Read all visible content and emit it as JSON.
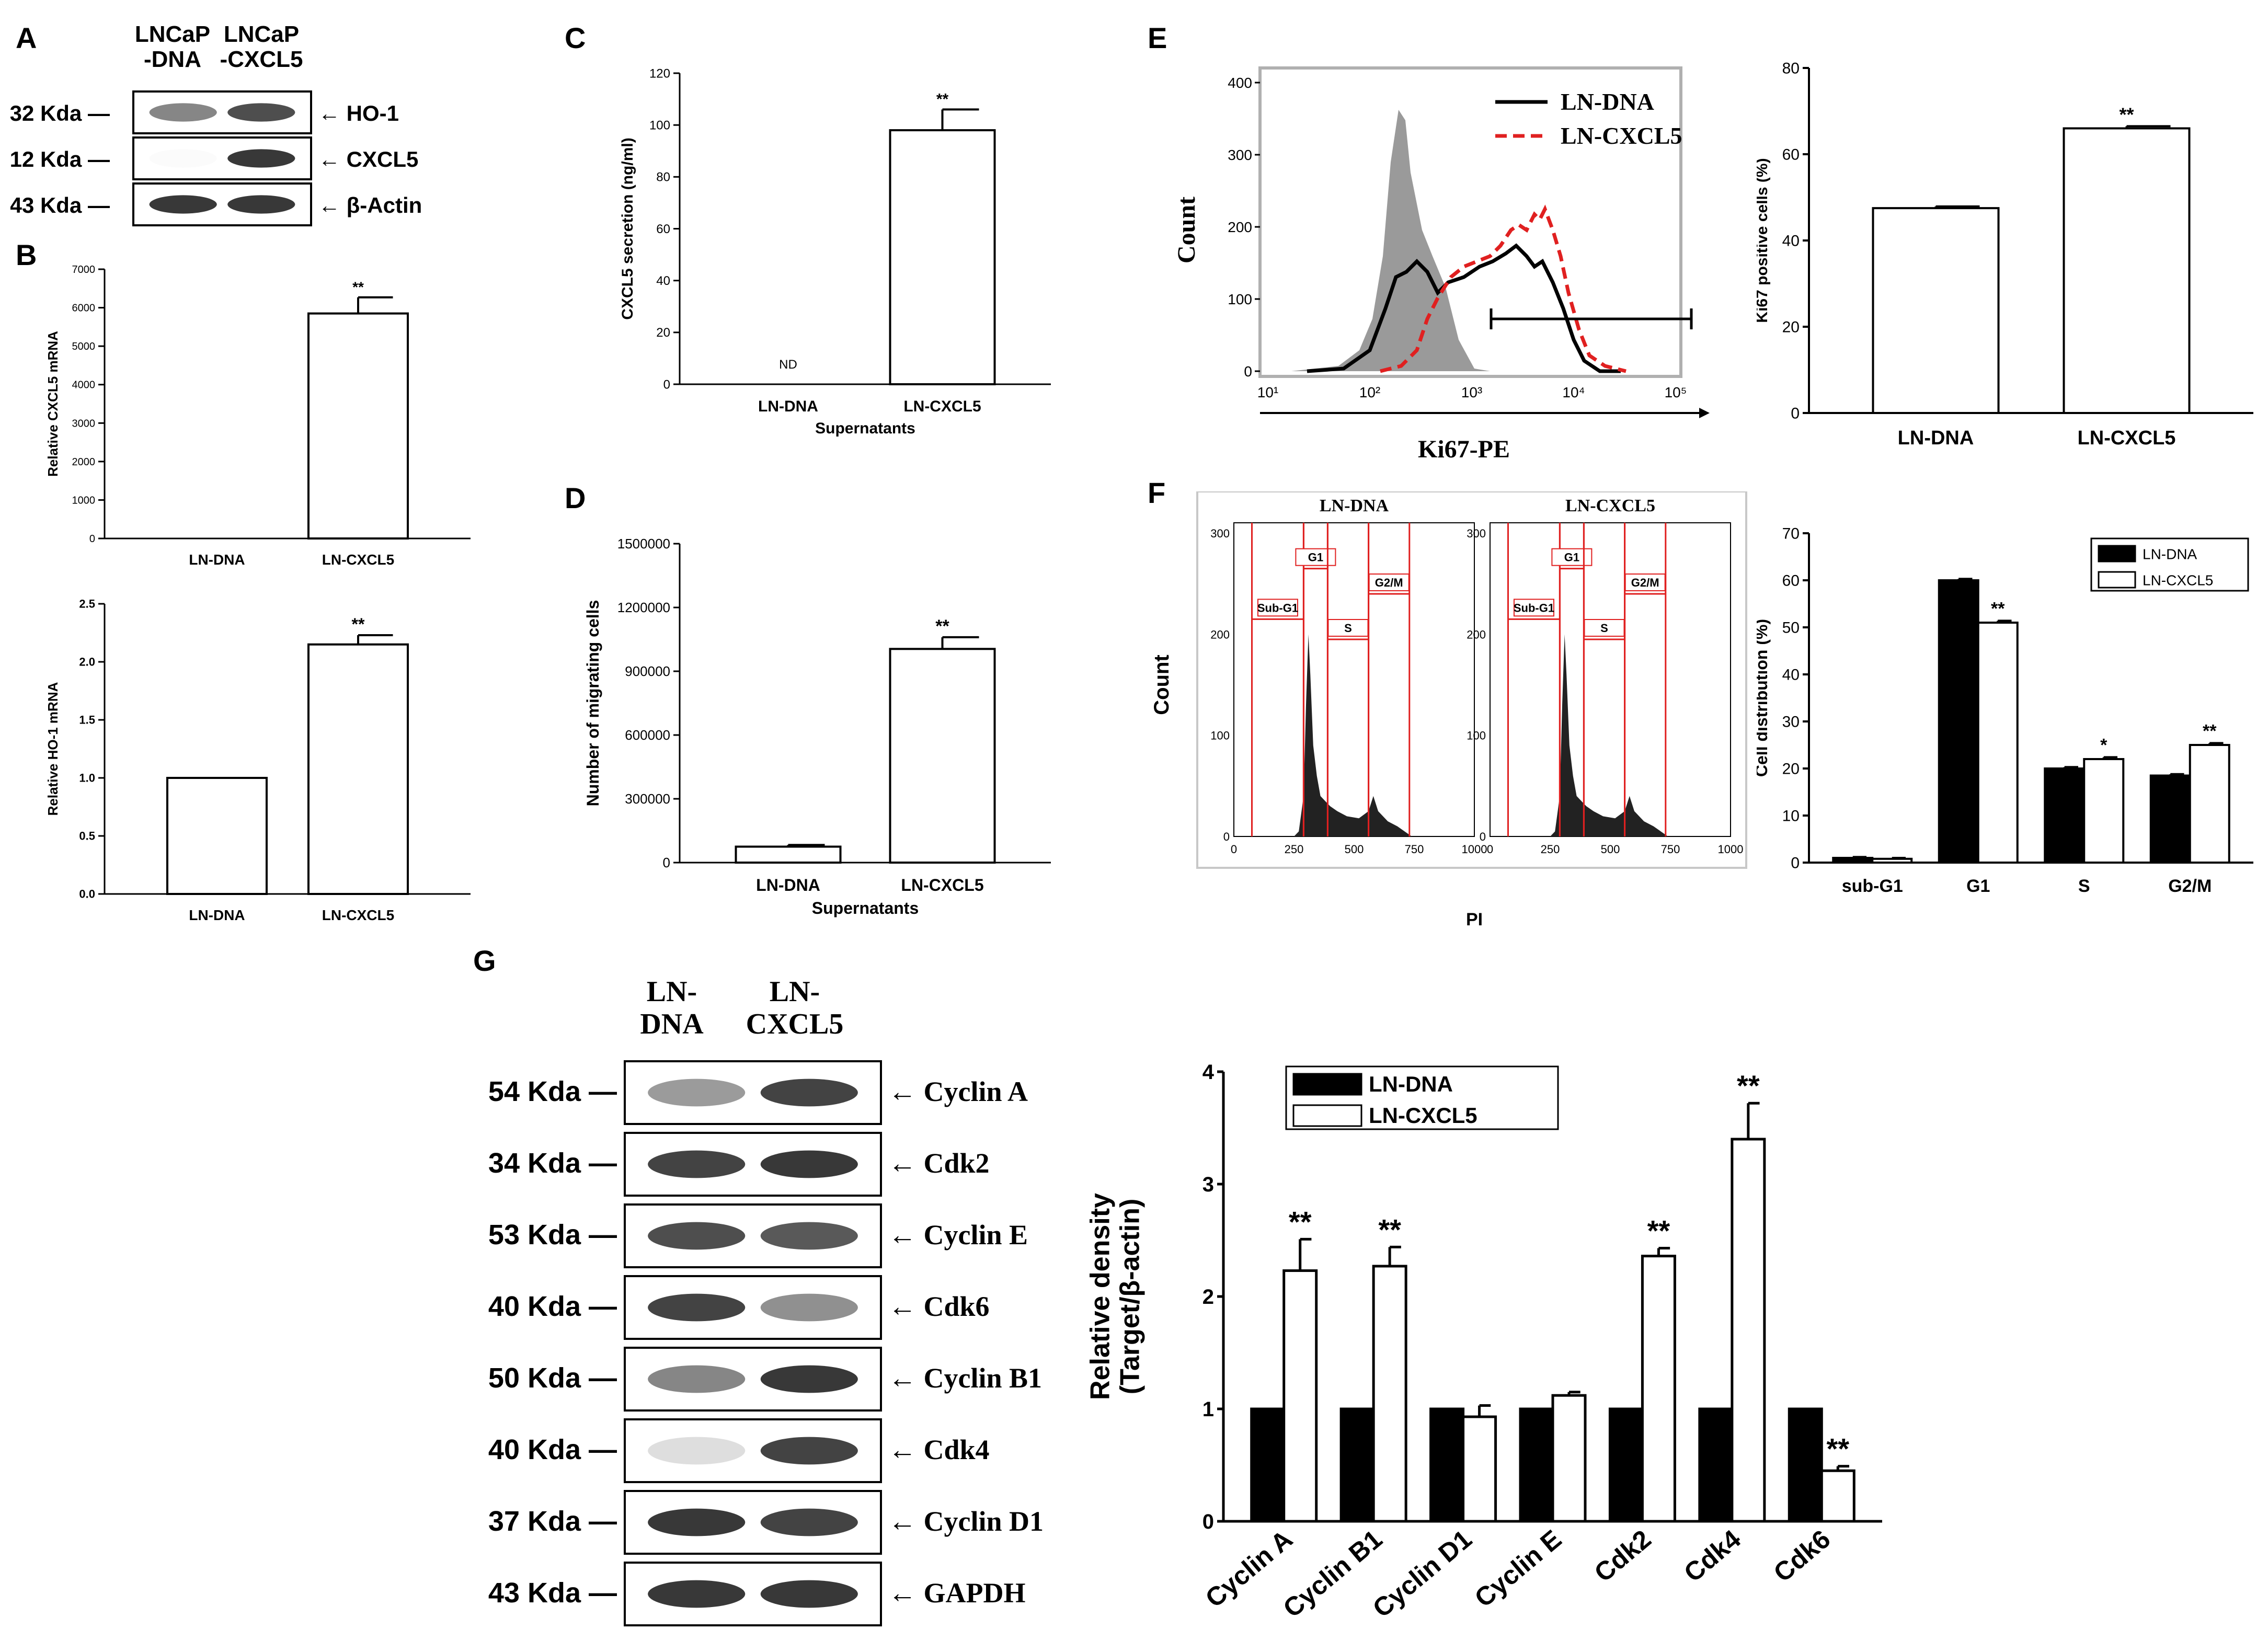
{
  "panel_letters": {
    "A": "A",
    "B": "B",
    "C": "C",
    "D": "D",
    "E": "E",
    "F": "F",
    "G": "G"
  },
  "blotA": {
    "lane_headers": [
      "LNCaP\n-DNA",
      "LNCaP\n-CXCL5"
    ],
    "rows": [
      {
        "mw": "32 Kda",
        "protein": "HO-1"
      },
      {
        "mw": "12 Kda",
        "protein": "CXCL5"
      },
      {
        "mw": "43 Kda",
        "protein": "β-Actin"
      }
    ]
  },
  "blotG": {
    "lane_headers": [
      "LN-\nDNA",
      "LN-\nCXCL5"
    ],
    "rows": [
      {
        "mw": "54 Kda",
        "protein": "Cyclin A"
      },
      {
        "mw": "34 Kda",
        "protein": "Cdk2"
      },
      {
        "mw": "53 Kda",
        "protein": "Cyclin E"
      },
      {
        "mw": "40 Kda",
        "protein": "Cdk6"
      },
      {
        "mw": "50 Kda",
        "protein": "Cyclin B1"
      },
      {
        "mw": "40 Kda",
        "protein": "Cdk4"
      },
      {
        "mw": "37 Kda",
        "protein": "Cyclin D1"
      },
      {
        "mw": "43 Kda",
        "protein": "GAPDH"
      }
    ]
  },
  "flowE": {
    "ylabel": "Count",
    "xlabel": "Ki67-PE",
    "yticks": [
      "0",
      "100",
      "200",
      "300",
      "400"
    ],
    "xticks": [
      "10¹",
      "10²",
      "10³",
      "10⁴",
      "10⁵"
    ],
    "legend": [
      "LN-DNA",
      "LN-CXCL5"
    ]
  },
  "flowF": {
    "ylabel": "Count",
    "xlabel": "PI",
    "panels": [
      "LN-DNA",
      "LN-CXCL5"
    ],
    "yticks": [
      "0",
      "100",
      "200",
      "300"
    ],
    "xticks": [
      "0",
      "250",
      "500",
      "750",
      "1000"
    ],
    "gates": [
      "Sub-G1",
      "G1",
      "S",
      "G2/M"
    ]
  },
  "chart_data": [
    {
      "id": "B1",
      "type": "bar",
      "categories": [
        "LN-DNA",
        "LN-CXCL5"
      ],
      "values": [
        0,
        5850
      ],
      "errors": [
        0,
        420
      ],
      "sig": [
        "",
        "**"
      ],
      "ylabel": "Relative CXCL5 mRNA",
      "ylim": [
        0,
        7000
      ],
      "yticks": [
        "0",
        "1000",
        "2000",
        "3000",
        "4000",
        "5000",
        "6000",
        "7000"
      ]
    },
    {
      "id": "B2",
      "type": "bar",
      "categories": [
        "LN-DNA",
        "LN-CXCL5"
      ],
      "values": [
        1.0,
        2.15
      ],
      "errors": [
        0,
        0.08
      ],
      "sig": [
        "",
        "**"
      ],
      "ylabel": "Relative HO-1 mRNA",
      "ylim": [
        0,
        2.5
      ],
      "yticks": [
        "0.0",
        "0.5",
        "1.0",
        "1.5",
        "2.0",
        "2.5"
      ]
    },
    {
      "id": "C",
      "type": "bar",
      "categories": [
        "LN-DNA",
        "LN-CXCL5"
      ],
      "values": [
        0,
        98
      ],
      "errors": [
        0,
        8
      ],
      "sig": [
        "",
        "**"
      ],
      "notes": [
        "ND",
        ""
      ],
      "ylabel": "CXCL5 secretion (ng/ml)",
      "xlabel": "Supernatants",
      "ylim": [
        0,
        120
      ],
      "yticks": [
        "0",
        "20",
        "40",
        "60",
        "80",
        "100",
        "120"
      ]
    },
    {
      "id": "D",
      "type": "bar",
      "categories": [
        "LN-DNA",
        "LN-CXCL5"
      ],
      "values": [
        75000,
        1005000
      ],
      "errors": [
        8000,
        55000
      ],
      "sig": [
        "",
        "**"
      ],
      "ylabel": "Number of migrating cells",
      "xlabel": "Supernatants",
      "ylim": [
        0,
        1500000
      ],
      "yticks": [
        "0",
        "300000",
        "600000",
        "900000",
        "1200000",
        "1500000"
      ]
    },
    {
      "id": "E2",
      "type": "bar",
      "categories": [
        "LN-DNA",
        "LN-CXCL5"
      ],
      "values": [
        47.5,
        66
      ],
      "errors": [
        0.4,
        0.5
      ],
      "sig": [
        "",
        "**"
      ],
      "ylabel": "Ki67 positive cells (%)",
      "ylim": [
        0,
        80
      ],
      "yticks": [
        "0",
        "20",
        "40",
        "60",
        "80"
      ]
    },
    {
      "id": "F2",
      "type": "bar",
      "categories": [
        "sub-G1",
        "G1",
        "S",
        "G2/M"
      ],
      "series": [
        {
          "name": "LN-DNA",
          "values": [
            1,
            60,
            20,
            18.5
          ],
          "errors": [
            0.2,
            0.3,
            0.3,
            0.3
          ]
        },
        {
          "name": "LN-CXCL5",
          "values": [
            0.8,
            51,
            22,
            25
          ],
          "errors": [
            0.2,
            0.4,
            0.4,
            0.4
          ]
        }
      ],
      "sig": [
        "",
        "**",
        "*",
        "**"
      ],
      "ylabel": "Cell distribution (%)",
      "ylim": [
        0,
        70
      ],
      "yticks": [
        "0",
        "10",
        "20",
        "30",
        "40",
        "50",
        "60",
        "70"
      ]
    },
    {
      "id": "G2",
      "type": "bar",
      "categories": [
        "Cyclin A",
        "Cyclin B1",
        "Cyclin D1",
        "Cyclin E",
        "Cdk2",
        "Cdk4",
        "Cdk6"
      ],
      "series": [
        {
          "name": "LN-DNA",
          "values": [
            1,
            1,
            1,
            1,
            1,
            1,
            1
          ],
          "errors": [
            0,
            0,
            0,
            0,
            0,
            0,
            0
          ]
        },
        {
          "name": "LN-CXCL5",
          "values": [
            2.23,
            2.27,
            0.93,
            1.12,
            2.36,
            3.4,
            0.45
          ],
          "errors": [
            0.28,
            0.17,
            0.1,
            0.03,
            0.07,
            0.32,
            0.04
          ]
        }
      ],
      "sig": [
        "**",
        "**",
        "",
        "",
        "**",
        "**",
        "**"
      ],
      "ylabel": "Relative density\n(Target/β-actin)",
      "ylim": [
        0,
        4
      ],
      "yticks": [
        "0",
        "1",
        "2",
        "3",
        "4"
      ]
    }
  ]
}
